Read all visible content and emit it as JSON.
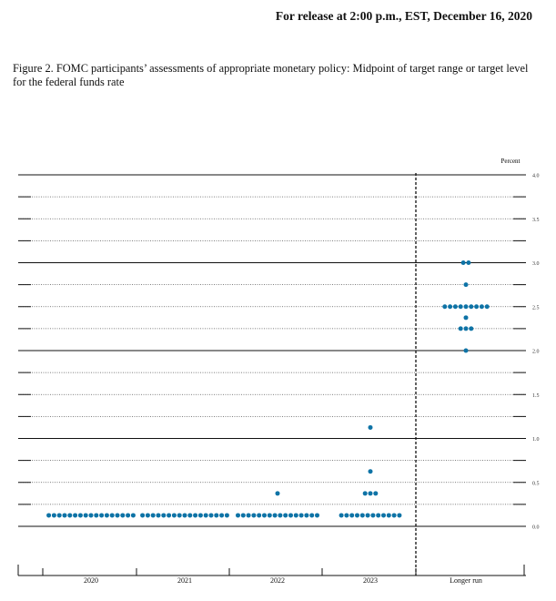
{
  "header": {
    "release_text": "For release at 2:00 p.m., EST, December 16, 2020"
  },
  "figure": {
    "caption": "Figure 2.  FOMC participants’ assessments of appropriate monetary policy:  Midpoint of target range or target level for the federal funds rate"
  },
  "chart_data": {
    "type": "scatter",
    "title": "",
    "ylabel": "Percent",
    "xlabel": "",
    "categories": [
      "2020",
      "2021",
      "2022",
      "2023",
      "Longer run"
    ],
    "ylim": [
      -0.5,
      4.0
    ],
    "yticks": [
      "4.0",
      "3.5",
      "3.0",
      "2.5",
      "2.0",
      "1.5",
      "1.0",
      "0.5",
      "0.0"
    ],
    "gridlines_solid_at": [
      4.0,
      3.0,
      2.0,
      1.0,
      0.0
    ],
    "gridlines_dotted_at": [
      3.75,
      3.5,
      3.25,
      2.75,
      2.5,
      2.25,
      1.75,
      1.5,
      1.25,
      0.75,
      0.5,
      0.25
    ],
    "series": [
      {
        "category": "2020",
        "dots": [
          {
            "y": 0.125,
            "count": 17
          }
        ]
      },
      {
        "category": "2021",
        "dots": [
          {
            "y": 0.125,
            "count": 17
          }
        ]
      },
      {
        "category": "2022",
        "dots": [
          {
            "y": 0.125,
            "count": 16
          },
          {
            "y": 0.375,
            "count": 1
          }
        ]
      },
      {
        "category": "2023",
        "dots": [
          {
            "y": 0.125,
            "count": 12
          },
          {
            "y": 0.375,
            "count": 3
          },
          {
            "y": 0.625,
            "count": 1
          },
          {
            "y": 1.125,
            "count": 1
          }
        ]
      },
      {
        "category": "Longer run",
        "dots": [
          {
            "y": 2.0,
            "count": 1
          },
          {
            "y": 2.25,
            "count": 3
          },
          {
            "y": 2.375,
            "count": 1
          },
          {
            "y": 2.5,
            "count": 9
          },
          {
            "y": 2.75,
            "count": 1
          },
          {
            "y": 3.0,
            "count": 2
          }
        ]
      }
    ],
    "dot_color": "#0e73a6",
    "grid": true,
    "legend": "none"
  }
}
